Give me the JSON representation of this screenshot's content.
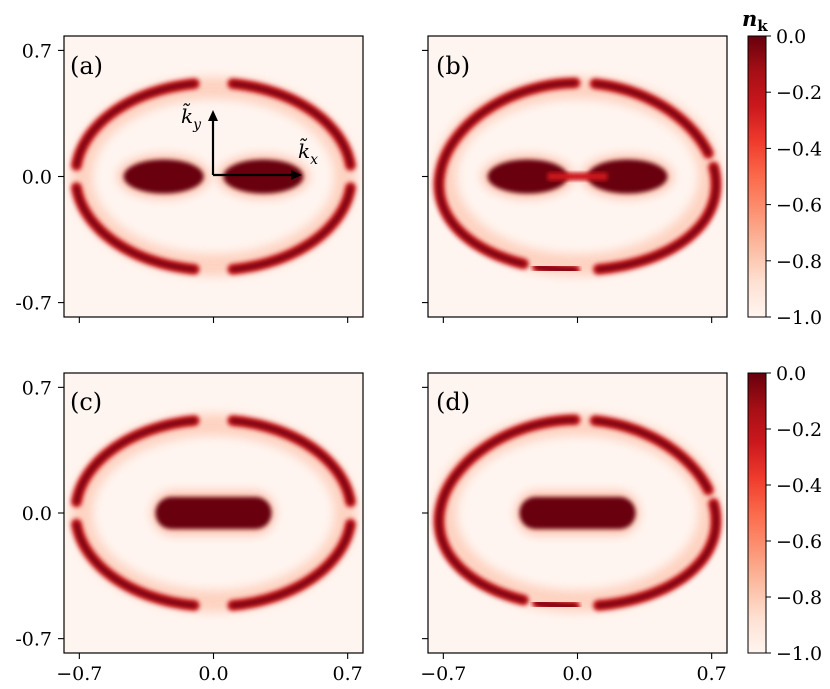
{
  "colors": {
    "min": "#fff5f0",
    "max": "#67000d",
    "scale": [
      "#fff5f0",
      "#fee0d2",
      "#fcbba1",
      "#fc9272",
      "#fb6a4a",
      "#ef3b2c",
      "#cb181d",
      "#a50f15",
      "#67000d"
    ]
  },
  "colorbar": {
    "label": "n",
    "label_sub": "k",
    "ticks": [
      "0.0",
      "−0.2",
      "−0.4",
      "−0.6",
      "−0.8",
      "−1.0"
    ]
  },
  "axis_labels": {
    "kx_main": "k̃",
    "kx_sub": "x",
    "ky_main": "k̃",
    "ky_sub": "y"
  },
  "chart_data": [
    {
      "type": "heatmap",
      "panel": "(a)",
      "x_ticks": [
        "",
        "",
        ""
      ],
      "y_ticks": [
        "0.7",
        "0.0",
        "-0.7"
      ],
      "xlim": [
        -0.78,
        0.78
      ],
      "ylim": [
        -0.78,
        0.78
      ],
      "colorbar": true,
      "value_range": [
        -1.0,
        0.0
      ],
      "features": {
        "central": "two lobes connected at origin (dumbbell)",
        "outer": "four crescent arcs along an ellipse, broken near x=0 and y=0"
      }
    },
    {
      "type": "heatmap",
      "panel": "(b)",
      "x_ticks": [
        "",
        "",
        ""
      ],
      "y_ticks": [
        "",
        "",
        ""
      ],
      "xlim": [
        -0.78,
        0.78
      ],
      "ylim": [
        -0.78,
        0.78
      ],
      "colorbar": true,
      "value_range": [
        -1.0,
        0.0
      ],
      "features": {
        "central": "two lobes with a thin bridge",
        "outer": "continuous skewed ring (upper-left and lower-right)"
      }
    },
    {
      "type": "heatmap",
      "panel": "(c)",
      "x_ticks": [
        "−0.7",
        "0.0",
        "0.7"
      ],
      "y_ticks": [
        "0.7",
        "0.0",
        "-0.7"
      ],
      "xlim": [
        -0.78,
        0.78
      ],
      "ylim": [
        -0.78,
        0.78
      ],
      "colorbar": false,
      "value_range": [
        -1.0,
        0.0
      ],
      "features": {
        "central": "elongated capsule",
        "outer": "four crescent arcs along an ellipse"
      }
    },
    {
      "type": "heatmap",
      "panel": "(d)",
      "x_ticks": [
        "−0.7",
        "0.0",
        "0.7"
      ],
      "y_ticks": [
        "",
        "",
        ""
      ],
      "xlim": [
        -0.78,
        0.78
      ],
      "ylim": [
        -0.78,
        0.78
      ],
      "colorbar": true,
      "value_range": [
        -1.0,
        0.0
      ],
      "features": {
        "central": "elongated capsule",
        "outer": "skewed ring"
      }
    }
  ]
}
